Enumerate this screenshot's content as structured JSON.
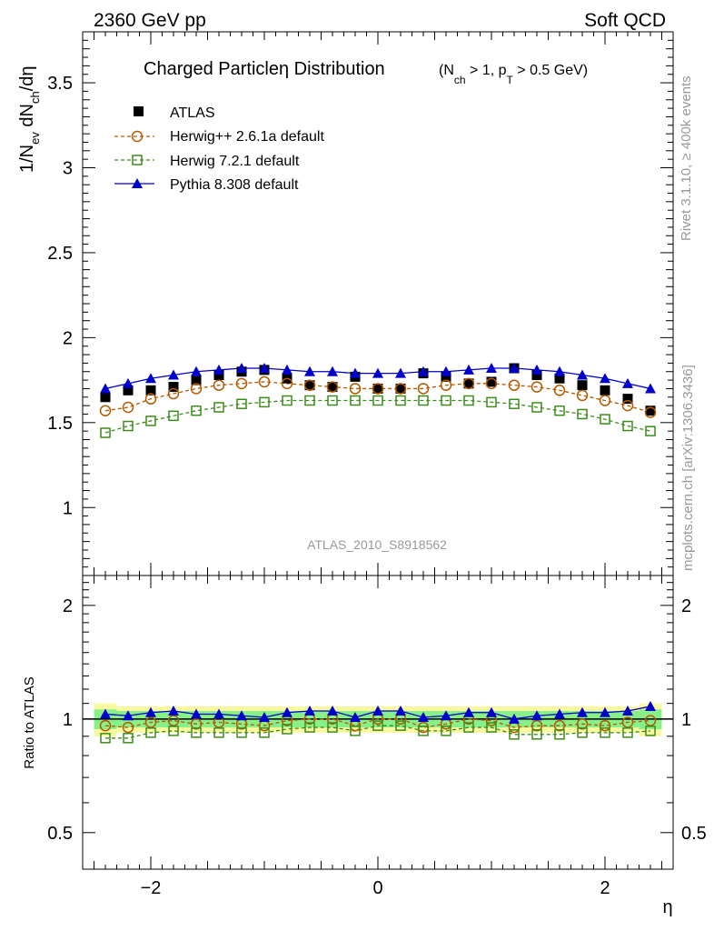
{
  "header": {
    "left": "2360 GeV pp",
    "right": "Soft QCD"
  },
  "side": {
    "rivet": "Rivet 3.1.10, ≥ 400k events",
    "mcplots": "mcplots.cern.ch [arXiv:1306.3436]"
  },
  "watermark": "ATLAS_2010_S8918562",
  "colors": {
    "atlas": "#000000",
    "herwigpp": "#b35900",
    "herwig7": "#3c8c1a",
    "pythia": "#0000cc",
    "band_inner": "#88f088",
    "band_outer": "#f8f8a0"
  },
  "chart_data": [
    {
      "id": "main",
      "type": "scatter",
      "title_main": "Charged Particleη Distribution",
      "title_cut": "(N",
      "title_cut_sub1": "ch",
      "title_cut_mid": " > 1, p",
      "title_cut_sub2": "T",
      "title_cut_end": " > 0.5 GeV)",
      "ylabel_parts": [
        "1/N",
        "ev",
        " dN",
        "ch",
        "/dη"
      ],
      "xlim": [
        -2.6,
        2.6
      ],
      "ylim": [
        0.6,
        3.8
      ],
      "yticks": [
        1,
        1.5,
        2,
        2.5,
        3,
        3.5
      ],
      "ytick_labels": [
        "1",
        "1.5",
        "2",
        "2.5",
        "3",
        "3.5"
      ],
      "x": [
        -2.4,
        -2.2,
        -2.0,
        -1.8,
        -1.6,
        -1.4,
        -1.2,
        -1.0,
        -0.8,
        -0.6,
        -0.4,
        -0.2,
        0.0,
        0.2,
        0.4,
        0.6,
        0.8,
        1.0,
        1.2,
        1.4,
        1.6,
        1.8,
        2.0,
        2.2,
        2.4
      ],
      "series": [
        {
          "name": "ATLAS",
          "style": "data",
          "values": [
            1.65,
            1.69,
            1.69,
            1.71,
            1.75,
            1.78,
            1.8,
            1.81,
            1.76,
            1.72,
            1.71,
            1.77,
            1.7,
            1.7,
            1.79,
            1.77,
            1.73,
            1.74,
            1.82,
            1.78,
            1.76,
            1.72,
            1.69,
            1.64,
            1.57
          ]
        },
        {
          "name": "Herwig++ 2.6.1a default",
          "style": "herwigpp",
          "values": [
            1.57,
            1.59,
            1.64,
            1.67,
            1.7,
            1.72,
            1.73,
            1.74,
            1.73,
            1.72,
            1.71,
            1.7,
            1.7,
            1.7,
            1.7,
            1.72,
            1.73,
            1.73,
            1.72,
            1.71,
            1.69,
            1.66,
            1.63,
            1.6,
            1.56
          ]
        },
        {
          "name": "Herwig 7.2.1 default",
          "style": "herwig7",
          "values": [
            1.44,
            1.48,
            1.51,
            1.54,
            1.57,
            1.59,
            1.61,
            1.62,
            1.63,
            1.63,
            1.63,
            1.63,
            1.63,
            1.63,
            1.63,
            1.63,
            1.63,
            1.62,
            1.61,
            1.59,
            1.57,
            1.55,
            1.52,
            1.48,
            1.45
          ]
        },
        {
          "name": "Pythia 8.308 default",
          "style": "pythia",
          "values": [
            1.7,
            1.73,
            1.76,
            1.78,
            1.8,
            1.81,
            1.82,
            1.82,
            1.81,
            1.8,
            1.8,
            1.79,
            1.79,
            1.79,
            1.8,
            1.8,
            1.81,
            1.82,
            1.82,
            1.81,
            1.8,
            1.78,
            1.76,
            1.73,
            1.7
          ]
        }
      ]
    },
    {
      "id": "ratio",
      "type": "scatter",
      "ylabel": "Ratio to ATLAS",
      "xlabel": "η",
      "xlim": [
        -2.6,
        2.6
      ],
      "ylim": [
        0.4,
        2.4
      ],
      "xticks": [
        -2,
        0,
        2
      ],
      "xtick_labels": [
        "−2",
        "0",
        "2"
      ],
      "yticks": [
        0.5,
        1,
        2
      ],
      "ytick_labels": [
        "0.5",
        "1",
        "2"
      ],
      "x": [
        -2.4,
        -2.2,
        -2.0,
        -1.8,
        -1.6,
        -1.4,
        -1.2,
        -1.0,
        -0.8,
        -0.6,
        -0.4,
        -0.2,
        0.0,
        0.2,
        0.4,
        0.6,
        0.8,
        1.0,
        1.2,
        1.4,
        1.6,
        1.8,
        2.0,
        2.2,
        2.4
      ],
      "band_inner": [
        0.06,
        0.05,
        0.05,
        0.05,
        0.05,
        0.05,
        0.05,
        0.05,
        0.05,
        0.05,
        0.05,
        0.05,
        0.05,
        0.05,
        0.05,
        0.05,
        0.05,
        0.05,
        0.05,
        0.05,
        0.05,
        0.05,
        0.05,
        0.05,
        0.06
      ],
      "band_outer": [
        0.1,
        0.08,
        0.08,
        0.08,
        0.08,
        0.08,
        0.08,
        0.08,
        0.08,
        0.08,
        0.08,
        0.08,
        0.08,
        0.08,
        0.08,
        0.08,
        0.08,
        0.08,
        0.08,
        0.08,
        0.08,
        0.08,
        0.08,
        0.08,
        0.1
      ],
      "series": [
        {
          "name": "Herwig++ 2.6.1a default",
          "style": "herwigpp",
          "values": [
            0.96,
            0.95,
            0.98,
            0.99,
            0.97,
            0.98,
            0.97,
            0.96,
            0.99,
            1.0,
            1.0,
            0.96,
            1.0,
            1.0,
            0.95,
            0.97,
            1.0,
            0.99,
            0.95,
            0.96,
            0.96,
            0.97,
            0.96,
            0.98,
            0.99
          ]
        },
        {
          "name": "Herwig 7.2.1 default",
          "style": "herwig7",
          "values": [
            0.89,
            0.89,
            0.92,
            0.93,
            0.92,
            0.92,
            0.92,
            0.92,
            0.94,
            0.95,
            0.95,
            0.93,
            0.96,
            0.96,
            0.93,
            0.93,
            0.95,
            0.95,
            0.91,
            0.91,
            0.91,
            0.92,
            0.92,
            0.92,
            0.93
          ]
        },
        {
          "name": "Pythia 8.308 default",
          "style": "pythia",
          "values": [
            1.03,
            1.02,
            1.04,
            1.05,
            1.03,
            1.03,
            1.02,
            1.01,
            1.04,
            1.05,
            1.05,
            1.01,
            1.05,
            1.05,
            1.01,
            1.02,
            1.04,
            1.04,
            1.0,
            1.02,
            1.03,
            1.04,
            1.04,
            1.05,
            1.08
          ]
        }
      ]
    }
  ]
}
